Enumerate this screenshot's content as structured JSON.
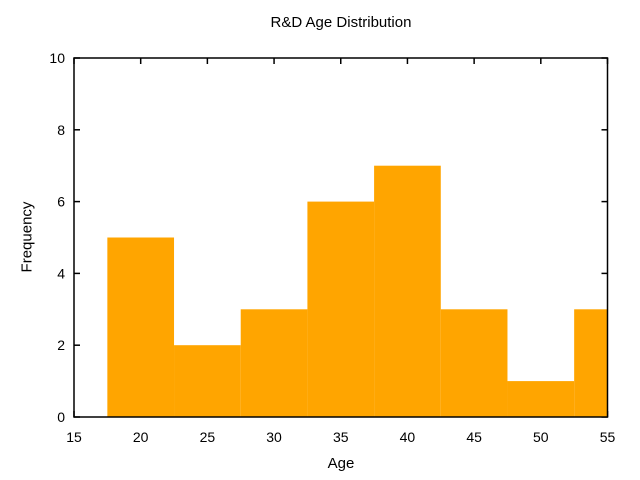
{
  "chart_data": {
    "type": "histogram",
    "title": "R&D Age Distribution",
    "xlabel": "Age",
    "ylabel": "Frequency",
    "xlim": [
      15,
      55
    ],
    "ylim": [
      0,
      10
    ],
    "xticks": [
      15,
      20,
      25,
      30,
      35,
      40,
      45,
      50,
      55
    ],
    "yticks": [
      0,
      2,
      4,
      6,
      8,
      10
    ],
    "bin_edges": [
      17.5,
      22.5,
      27.5,
      32.5,
      37.5,
      42.5,
      47.5,
      52.5,
      57.5
    ],
    "counts": [
      5,
      2,
      3,
      6,
      7,
      3,
      1,
      3
    ],
    "bar_color": "#ffa500",
    "axis_color": "#000000",
    "background_color": "#ffffff",
    "grid": false,
    "legend": "none"
  }
}
